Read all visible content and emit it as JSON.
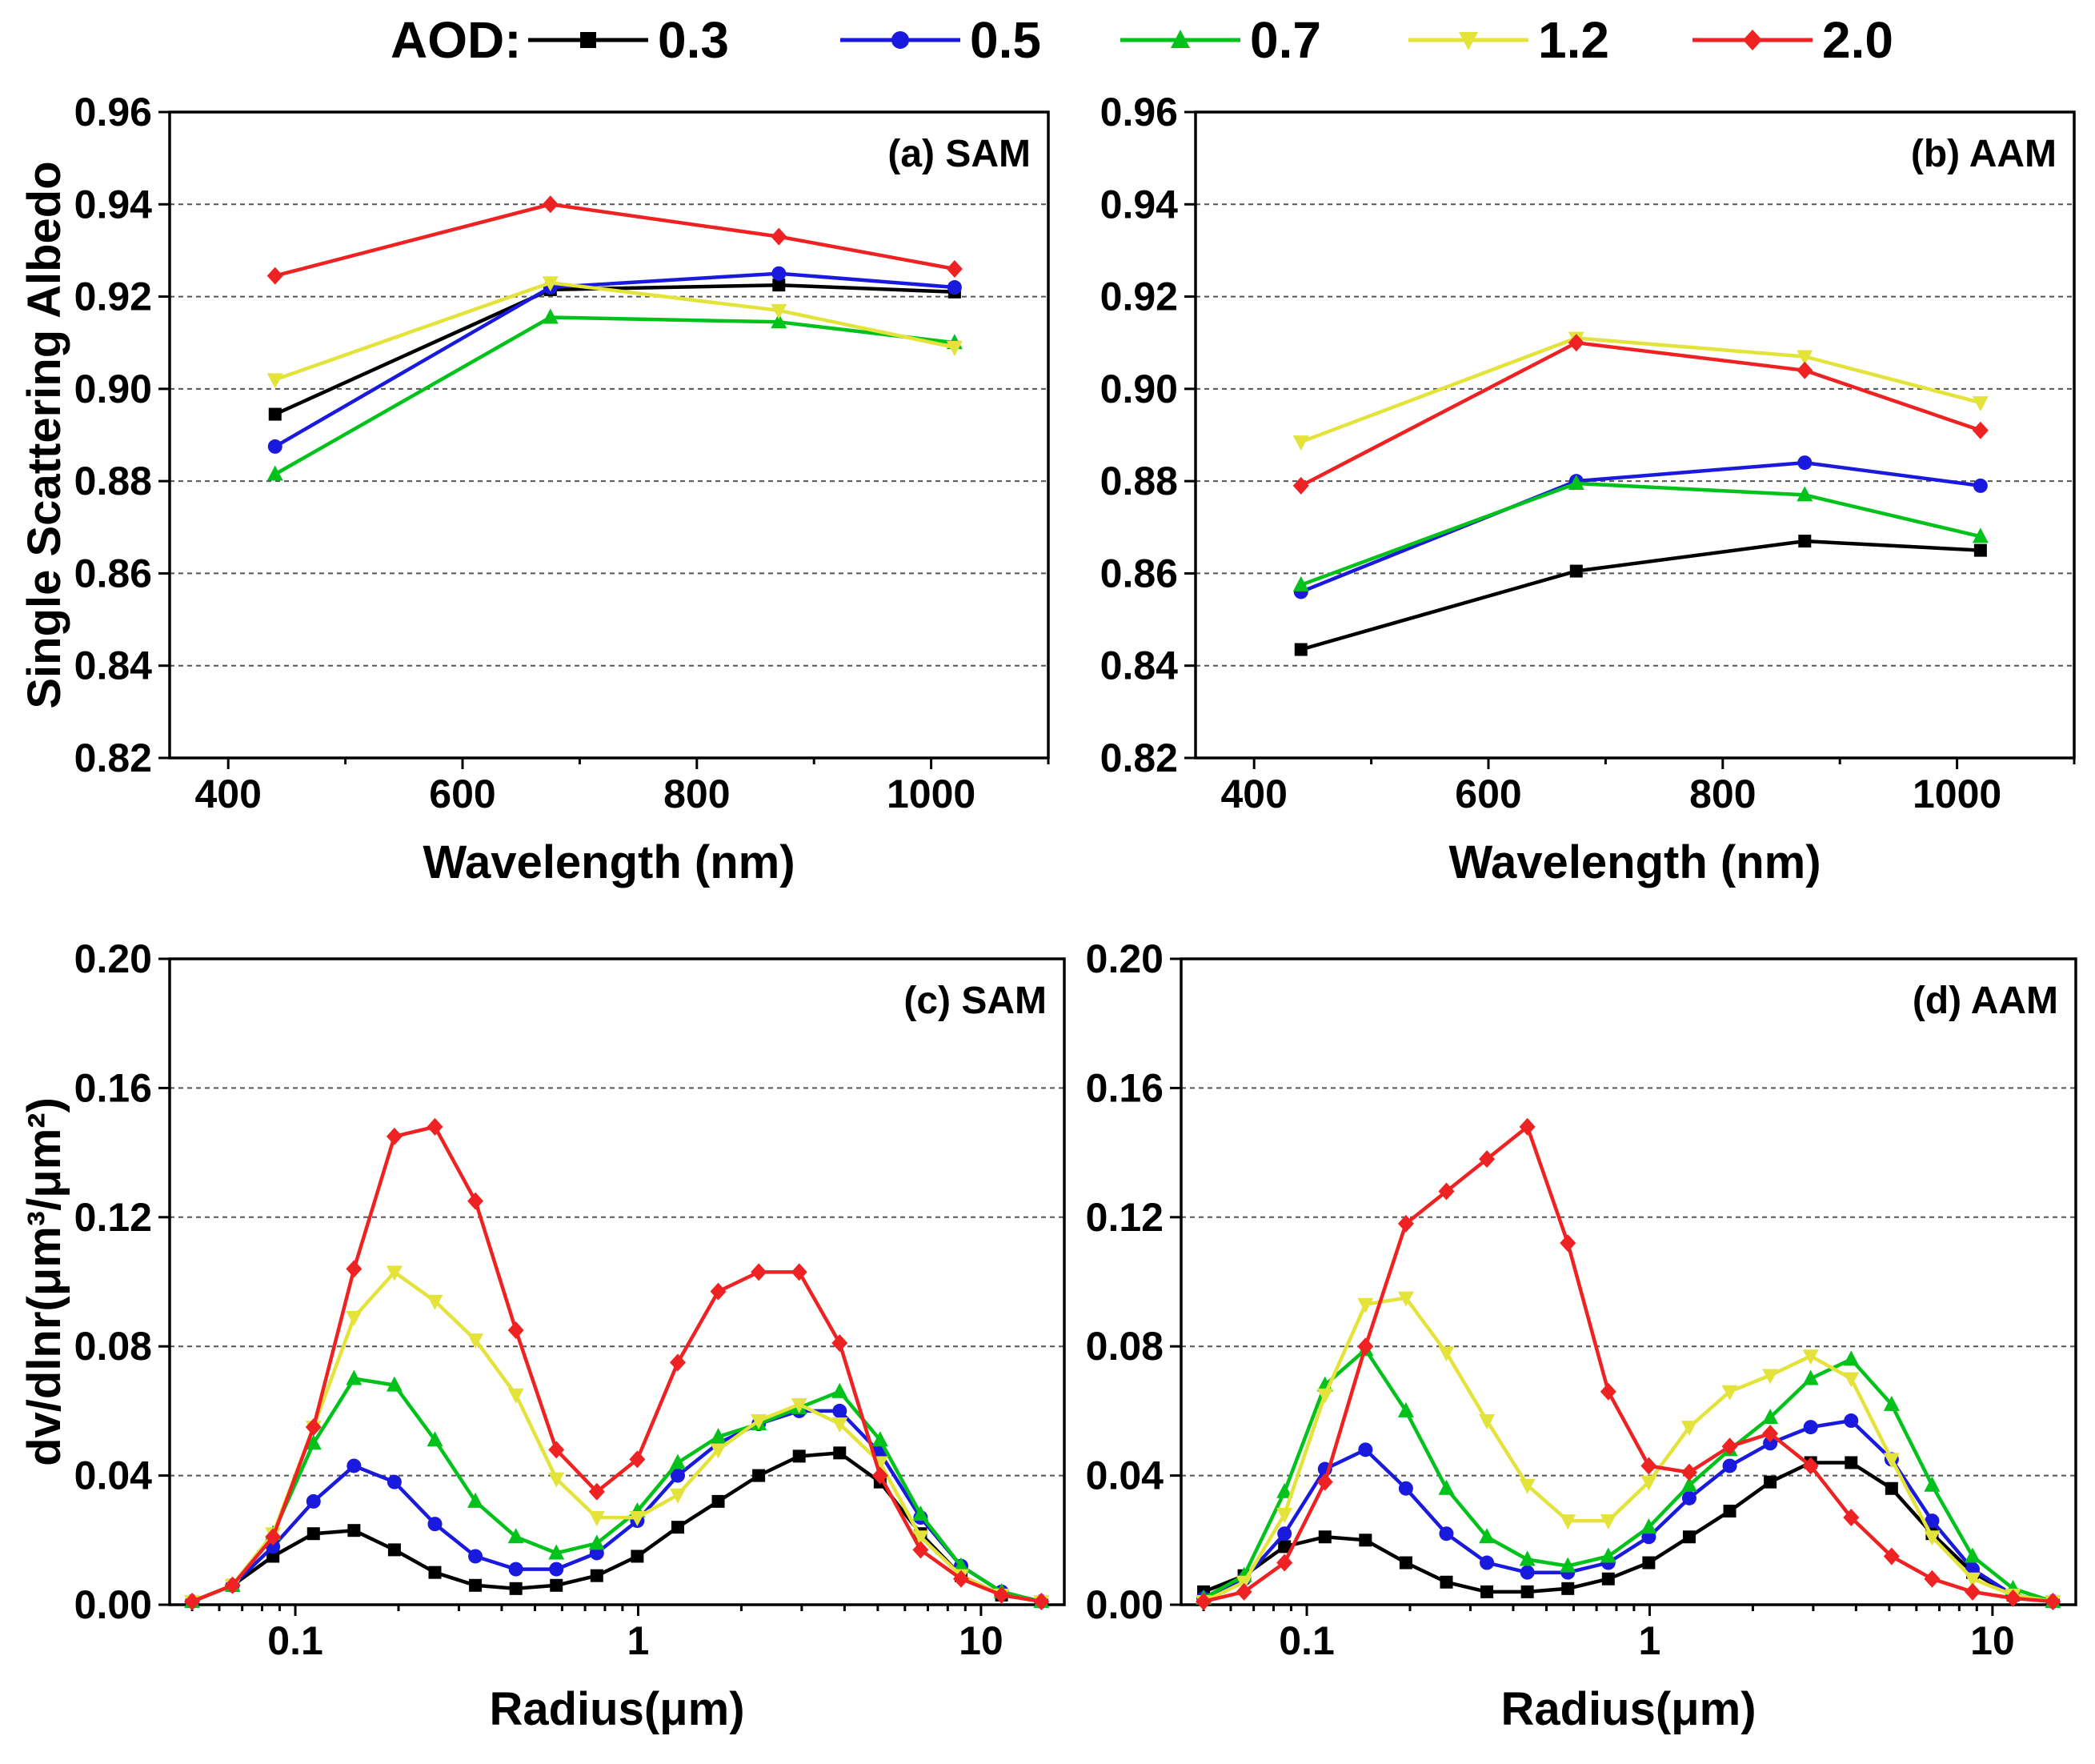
{
  "legend": {
    "title": "AOD:",
    "entries": [
      {
        "label": "0.3",
        "color": "#000000",
        "marker": "square"
      },
      {
        "label": "0.5",
        "color": "#1a1adf",
        "marker": "circle"
      },
      {
        "label": "0.7",
        "color": "#00c21a",
        "marker": "triangle-up"
      },
      {
        "label": "1.2",
        "color": "#e3e33c",
        "marker": "triangle-down"
      },
      {
        "label": "2.0",
        "color": "#ee2222",
        "marker": "diamond"
      }
    ]
  },
  "chart_data": [
    {
      "type": "line",
      "panel_label": "(a) SAM",
      "xlabel": "Wavelength (nm)",
      "ylabel": "Single Scattering Albedo",
      "x": [
        440,
        675,
        870,
        1020
      ],
      "xlim": [
        350,
        1100
      ],
      "ylim": [
        0.82,
        0.96
      ],
      "xticks": [
        400,
        600,
        800,
        1000
      ],
      "xtick_labels": [
        "400",
        "600",
        "800",
        "1000"
      ],
      "yticks": [
        0.82,
        0.84,
        0.86,
        0.88,
        0.9,
        0.92,
        0.94,
        0.96
      ],
      "ytick_labels": [
        "0.82",
        "0.84",
        "0.86",
        "0.88",
        "0.90",
        "0.92",
        "0.94",
        "0.96"
      ],
      "grid": "horizontal dashed",
      "series": [
        {
          "name": "0.3",
          "values": [
            0.8945,
            0.9215,
            0.9225,
            0.921
          ]
        },
        {
          "name": "0.5",
          "values": [
            0.8875,
            0.922,
            0.925,
            0.922
          ]
        },
        {
          "name": "0.7",
          "values": [
            0.8815,
            0.9155,
            0.9145,
            0.91
          ]
        },
        {
          "name": "1.2",
          "values": [
            0.902,
            0.923,
            0.917,
            0.909
          ]
        },
        {
          "name": "2.0",
          "values": [
            0.9245,
            0.94,
            0.933,
            0.926
          ]
        }
      ]
    },
    {
      "type": "line",
      "panel_label": "(b) AAM",
      "xlabel": "Wavelength (nm)",
      "ylabel": "",
      "x": [
        440,
        675,
        870,
        1020
      ],
      "xlim": [
        350,
        1100
      ],
      "ylim": [
        0.82,
        0.96
      ],
      "xticks": [
        400,
        600,
        800,
        1000
      ],
      "xtick_labels": [
        "400",
        "600",
        "800",
        "1000"
      ],
      "yticks": [
        0.82,
        0.84,
        0.86,
        0.88,
        0.9,
        0.92,
        0.94,
        0.96
      ],
      "ytick_labels": [
        "0.82",
        "0.84",
        "0.86",
        "0.88",
        "0.90",
        "0.92",
        "0.94",
        "0.96"
      ],
      "grid": "horizontal dashed",
      "series": [
        {
          "name": "0.3",
          "values": [
            0.8435,
            0.8605,
            0.867,
            0.865
          ]
        },
        {
          "name": "0.5",
          "values": [
            0.856,
            0.88,
            0.884,
            0.879
          ]
        },
        {
          "name": "0.7",
          "values": [
            0.8575,
            0.8795,
            0.877,
            0.868
          ]
        },
        {
          "name": "1.2",
          "values": [
            0.8885,
            0.911,
            0.907,
            0.897
          ]
        },
        {
          "name": "2.0",
          "values": [
            0.879,
            0.91,
            0.904,
            0.891
          ]
        }
      ]
    },
    {
      "type": "line",
      "panel_label": "(c) SAM",
      "xlabel": "Radius(μm)",
      "ylabel": "dv/dlnr(μm³/μm²)",
      "xscale": "log",
      "x": [
        0.05,
        0.0656,
        0.0861,
        0.113,
        0.1483,
        0.1946,
        0.2554,
        0.3352,
        0.4399,
        0.5773,
        0.7576,
        0.9943,
        1.3049,
        1.7125,
        2.2474,
        2.9494,
        3.8706,
        5.0796,
        6.6663,
        8.7486,
        11.4813,
        15.0
      ],
      "xlim": [
        0.043,
        17.5
      ],
      "ylim": [
        0,
        0.2
      ],
      "xticks": [
        0.1,
        1,
        10
      ],
      "xtick_labels": [
        "0.1",
        "1",
        "10"
      ],
      "yticks": [
        0.0,
        0.04,
        0.08,
        0.12,
        0.16,
        0.2
      ],
      "ytick_labels": [
        "0.00",
        "0.04",
        "0.08",
        "0.12",
        "0.16",
        "0.20"
      ],
      "grid": "horizontal dashed",
      "series": [
        {
          "name": "0.3",
          "values": [
            0.001,
            0.006,
            0.015,
            0.022,
            0.023,
            0.017,
            0.01,
            0.006,
            0.005,
            0.006,
            0.009,
            0.015,
            0.024,
            0.032,
            0.04,
            0.046,
            0.047,
            0.038,
            0.022,
            0.009,
            0.003,
            0.001
          ]
        },
        {
          "name": "0.5",
          "values": [
            0.001,
            0.006,
            0.018,
            0.032,
            0.043,
            0.038,
            0.025,
            0.015,
            0.011,
            0.011,
            0.016,
            0.026,
            0.04,
            0.05,
            0.056,
            0.06,
            0.06,
            0.047,
            0.027,
            0.012,
            0.004,
            0.001
          ]
        },
        {
          "name": "0.7",
          "values": [
            0.001,
            0.006,
            0.022,
            0.05,
            0.07,
            0.068,
            0.051,
            0.032,
            0.021,
            0.016,
            0.019,
            0.029,
            0.044,
            0.052,
            0.056,
            0.061,
            0.066,
            0.051,
            0.028,
            0.012,
            0.004,
            0.001
          ]
        },
        {
          "name": "1.2",
          "values": [
            0.001,
            0.006,
            0.022,
            0.055,
            0.089,
            0.103,
            0.094,
            0.082,
            0.065,
            0.039,
            0.027,
            0.027,
            0.034,
            0.048,
            0.057,
            0.062,
            0.056,
            0.044,
            0.021,
            0.009,
            0.003,
            0.001
          ]
        },
        {
          "name": "2.0",
          "values": [
            0.001,
            0.006,
            0.021,
            0.055,
            0.104,
            0.145,
            0.148,
            0.125,
            0.085,
            0.048,
            0.035,
            0.045,
            0.075,
            0.097,
            0.103,
            0.103,
            0.081,
            0.04,
            0.017,
            0.008,
            0.003,
            0.001
          ]
        }
      ]
    },
    {
      "type": "line",
      "panel_label": "(d) AAM",
      "xlabel": "Radius(μm)",
      "ylabel": "",
      "xscale": "log",
      "x": [
        0.05,
        0.0656,
        0.0861,
        0.113,
        0.1483,
        0.1946,
        0.2554,
        0.3352,
        0.4399,
        0.5773,
        0.7576,
        0.9943,
        1.3049,
        1.7125,
        2.2474,
        2.9494,
        3.8706,
        5.0796,
        6.6663,
        8.7486,
        11.4813,
        15.0
      ],
      "xlim": [
        0.043,
        17.5
      ],
      "ylim": [
        0,
        0.2
      ],
      "xticks": [
        0.1,
        1,
        10
      ],
      "xtick_labels": [
        "0.1",
        "1",
        "10"
      ],
      "yticks": [
        0.0,
        0.04,
        0.08,
        0.12,
        0.16,
        0.2
      ],
      "ytick_labels": [
        "0.00",
        "0.04",
        "0.08",
        "0.12",
        "0.16",
        "0.20"
      ],
      "grid": "horizontal dashed",
      "series": [
        {
          "name": "0.3",
          "values": [
            0.004,
            0.009,
            0.018,
            0.021,
            0.02,
            0.013,
            0.007,
            0.004,
            0.004,
            0.005,
            0.008,
            0.013,
            0.021,
            0.029,
            0.038,
            0.044,
            0.044,
            0.036,
            0.022,
            0.01,
            0.003,
            0.001
          ]
        },
        {
          "name": "0.5",
          "values": [
            0.002,
            0.008,
            0.022,
            0.042,
            0.048,
            0.036,
            0.022,
            0.013,
            0.01,
            0.01,
            0.013,
            0.021,
            0.033,
            0.043,
            0.05,
            0.055,
            0.057,
            0.045,
            0.026,
            0.011,
            0.003,
            0.001
          ]
        },
        {
          "name": "0.7",
          "values": [
            0.002,
            0.009,
            0.035,
            0.068,
            0.079,
            0.06,
            0.036,
            0.021,
            0.014,
            0.012,
            0.015,
            0.024,
            0.037,
            0.048,
            0.058,
            0.07,
            0.076,
            0.062,
            0.037,
            0.015,
            0.005,
            0.001
          ]
        },
        {
          "name": "1.2",
          "values": [
            0.001,
            0.007,
            0.028,
            0.065,
            0.093,
            0.095,
            0.078,
            0.057,
            0.037,
            0.026,
            0.026,
            0.038,
            0.055,
            0.066,
            0.071,
            0.077,
            0.07,
            0.045,
            0.021,
            0.008,
            0.003,
            0.001
          ]
        },
        {
          "name": "2.0",
          "values": [
            0.001,
            0.004,
            0.013,
            0.038,
            0.08,
            0.118,
            0.128,
            0.138,
            0.148,
            0.112,
            0.066,
            0.043,
            0.041,
            0.049,
            0.053,
            0.043,
            0.027,
            0.015,
            0.008,
            0.004,
            0.002,
            0.001
          ]
        }
      ]
    }
  ]
}
